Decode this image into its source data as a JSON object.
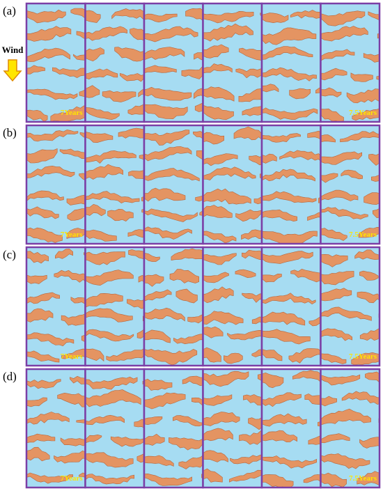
{
  "figure": {
    "wind_label": "Wind",
    "rows": [
      {
        "label": "(a)",
        "start_label": "7Years",
        "end_label": "7.5Years"
      },
      {
        "label": "(b)",
        "start_label": "7Years",
        "end_label": "7.5Years"
      },
      {
        "label": "(c)",
        "start_label": "7Years",
        "end_label": "7.5Years"
      },
      {
        "label": "(d)",
        "start_label": "7Years",
        "end_label": "7.5Years"
      }
    ]
  }
}
